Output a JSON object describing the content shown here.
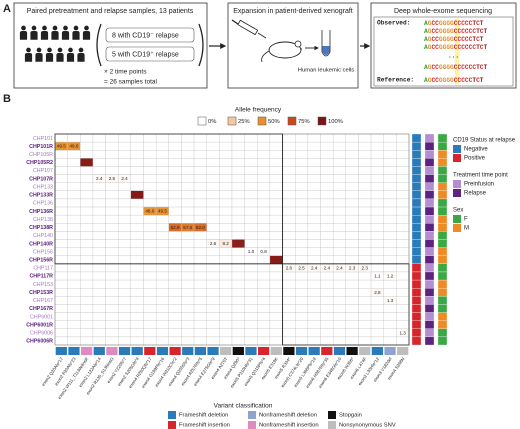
{
  "panel_a": {
    "label": "A",
    "box1": {
      "title": "Paired pretreatment and relapse samples, 13 patients",
      "lines": [
        "8 with CD19⁻ relapse",
        "5 with CD19⁺ relapse",
        "× 2 time points",
        "= 26 samples total"
      ]
    },
    "box2": {
      "title": "Expansion in patient-derived xenograft",
      "caption": "Human leukemic cells"
    },
    "box3": {
      "title": "Deep whole-exome sequencing",
      "observed_label": "Observed:",
      "reference_label": "Reference:",
      "observed": [
        "AGCCGGGGCCCCCTCT",
        "AGCCGGGGCCCCCCTCT",
        "AGCCGGGGCCCCCTCT",
        "AGCCGGGGCCCCCCTCT",
        "AGCCGGGGCCCCCCTCT"
      ],
      "ellipsis": "...",
      "reference": "AGCCGGGGCCCCCTCT"
    }
  },
  "chart_data": {
    "type": "heatmap",
    "panel_label": "B",
    "color_scale": {
      "title": "Allele frequency",
      "ticks": [
        {
          "value": 0,
          "label": "0%"
        },
        {
          "value": 25,
          "label": "25%"
        },
        {
          "value": 50,
          "label": "50%"
        },
        {
          "value": 75,
          "label": "75%"
        },
        {
          "value": 100,
          "label": "100%"
        }
      ],
      "colors": [
        "#ffffff",
        "#f6c6a0",
        "#e8912f",
        "#c9481c",
        "#7a1417"
      ]
    },
    "annotations": {
      "cd19_status": {
        "title": "CD19 Status at relapse",
        "levels": [
          {
            "name": "Negative",
            "color": "#2b7bba"
          },
          {
            "name": "Positive",
            "color": "#d7262b"
          }
        ]
      },
      "time_point": {
        "title": "Treatment time point",
        "levels": [
          {
            "name": "Preinfusion",
            "color": "#b48ed0"
          },
          {
            "name": "Relapse",
            "color": "#5e2280"
          }
        ]
      },
      "sex": {
        "title": "Sex",
        "levels": [
          {
            "name": "F",
            "color": "#3aa845"
          },
          {
            "name": "M",
            "color": "#f08a24"
          }
        ]
      }
    },
    "rows": [
      {
        "name": "CHP101",
        "cd19_status": "Negative",
        "time_point": "Preinfusion",
        "sex": "F"
      },
      {
        "name": "CHP101R",
        "cd19_status": "Negative",
        "time_point": "Relapse",
        "sex": "F"
      },
      {
        "name": "CHP105R",
        "cd19_status": "Negative",
        "time_point": "Preinfusion",
        "sex": "M"
      },
      {
        "name": "CHP105R2",
        "cd19_status": "Negative",
        "time_point": "Relapse",
        "sex": "M"
      },
      {
        "name": "CHP107",
        "cd19_status": "Negative",
        "time_point": "Preinfusion",
        "sex": "F"
      },
      {
        "name": "CHP107R",
        "cd19_status": "Negative",
        "time_point": "Relapse",
        "sex": "F"
      },
      {
        "name": "CHP133",
        "cd19_status": "Negative",
        "time_point": "Preinfusion",
        "sex": "M"
      },
      {
        "name": "CHP133R",
        "cd19_status": "Negative",
        "time_point": "Relapse",
        "sex": "M"
      },
      {
        "name": "CHP136",
        "cd19_status": "Negative",
        "time_point": "Preinfusion",
        "sex": "F"
      },
      {
        "name": "CHP136R",
        "cd19_status": "Negative",
        "time_point": "Relapse",
        "sex": "F"
      },
      {
        "name": "CHP138",
        "cd19_status": "Negative",
        "time_point": "Preinfusion",
        "sex": "M"
      },
      {
        "name": "CHP138R",
        "cd19_status": "Negative",
        "time_point": "Relapse",
        "sex": "M"
      },
      {
        "name": "CHP140",
        "cd19_status": "Negative",
        "time_point": "Preinfusion",
        "sex": "F"
      },
      {
        "name": "CHP140R",
        "cd19_status": "Negative",
        "time_point": "Relapse",
        "sex": "F"
      },
      {
        "name": "CHP156",
        "cd19_status": "Negative",
        "time_point": "Preinfusion",
        "sex": "M"
      },
      {
        "name": "CHP156R",
        "cd19_status": "Negative",
        "time_point": "Relapse",
        "sex": "M"
      },
      {
        "name": "CHP117",
        "cd19_status": "Positive",
        "time_point": "Preinfusion",
        "sex": "F"
      },
      {
        "name": "CHP117R",
        "cd19_status": "Positive",
        "time_point": "Relapse",
        "sex": "F"
      },
      {
        "name": "CHP153",
        "cd19_status": "Positive",
        "time_point": "Preinfusion",
        "sex": "M"
      },
      {
        "name": "CHP153R",
        "cd19_status": "Positive",
        "time_point": "Relapse",
        "sex": "M"
      },
      {
        "name": "CHP167",
        "cd19_status": "Positive",
        "time_point": "Preinfusion",
        "sex": "F"
      },
      {
        "name": "CHP167R",
        "cd19_status": "Positive",
        "time_point": "Relapse",
        "sex": "F"
      },
      {
        "name": "CHP6001",
        "cd19_status": "Positive",
        "time_point": "Preinfusion",
        "sex": "M"
      },
      {
        "name": "CHP6001R",
        "cd19_status": "Positive",
        "time_point": "Relapse",
        "sex": "M"
      },
      {
        "name": "CHP6006",
        "cd19_status": "Positive",
        "time_point": "Preinfusion",
        "sex": "F"
      },
      {
        "name": "CHP6006R",
        "cd19_status": "Positive",
        "time_point": "Relapse",
        "sex": "F"
      }
    ],
    "variant_title": "Variant classification",
    "variant_classes": [
      {
        "name": "Frameshift deletion",
        "color": "#2b7bba"
      },
      {
        "name": "Frameshift insertion",
        "color": "#d7262b"
      },
      {
        "name": "Nonframeshift deletion",
        "color": "#8fa3d1"
      },
      {
        "name": "Nonframeshift insertion",
        "color": "#e08ac2"
      },
      {
        "name": "Stopgain",
        "color": "#111111"
      },
      {
        "name": "Nonsynonymous SNV",
        "color": "#bdbdbd"
      }
    ],
    "columns": [
      {
        "name": "exon2 Q20Afs*17",
        "class": "Frameshift deletion"
      },
      {
        "name": "exon2 P20Afs*23",
        "class": "Frameshift deletion"
      },
      {
        "name": "exon2 W111_T113delinsR",
        "class": "Nonframeshift insertion"
      },
      {
        "name": "exon2 L122Afs*14",
        "class": "Frameshift deletion"
      },
      {
        "name": "exon2 R135_S136insG",
        "class": "Nonframeshift insertion"
      },
      {
        "name": "exon2 Y220fs*7",
        "class": "Frameshift deletion"
      },
      {
        "name": "exon2 S205Gfs*4",
        "class": "Frameshift deletion"
      },
      {
        "name": "exon4 R250Qfs*17",
        "class": "Frameshift insertion"
      },
      {
        "name": "exon4 G199Pfs*16",
        "class": "Frameshift deletion"
      },
      {
        "name": "exon4 W210Cfs*2",
        "class": "Frameshift insertion"
      },
      {
        "name": "exon4 Q255Sfs*3",
        "class": "Frameshift deletion"
      },
      {
        "name": "exon4 A257Rfs*5",
        "class": "Frameshift deletion"
      },
      {
        "name": "exon4 E275Gfs*9",
        "class": "Frameshift deletion"
      },
      {
        "name": "exon4 A270T",
        "class": "Nonsynonymous SNV"
      },
      {
        "name": "exon4 Q290*",
        "class": "Stopgain"
      },
      {
        "name": "exon5 P310Hfs*31",
        "class": "Frameshift deletion"
      },
      {
        "name": "exon5 Q315Pfs*4",
        "class": "Frameshift insertion"
      },
      {
        "name": "exon5 E319K",
        "class": "Nonsynonymous SNV"
      },
      {
        "name": "exon5 R334*",
        "class": "Stopgain"
      },
      {
        "name": "exon5 C374Lfs*20",
        "class": "Frameshift deletion"
      },
      {
        "name": "exon5 L368Pfs*19",
        "class": "Frameshift deletion"
      },
      {
        "name": "exon6 H387Rfs*35",
        "class": "Frameshift insertion"
      },
      {
        "name": "exon6 E348Gfs*10",
        "class": "Frameshift deletion"
      },
      {
        "name": "exon6 W356*",
        "class": "Stopgain"
      },
      {
        "name": "exon6 L474F",
        "class": "Nonsynonymous SNV"
      },
      {
        "name": "exon2 L30Hfs*12",
        "class": "Frameshift deletion"
      },
      {
        "name": "exon3 V182del",
        "class": "Nonframeshift deletion"
      },
      {
        "name": "exon4 S268N",
        "class": "Nonsynonymous SNV"
      }
    ],
    "cells": [
      {
        "row": 1,
        "col": 0,
        "value": 49.5
      },
      {
        "row": 1,
        "col": 1,
        "value": 49.6
      },
      {
        "row": 3,
        "col": 2,
        "value": 96
      },
      {
        "row": 5,
        "col": 3,
        "value": 2.4
      },
      {
        "row": 5,
        "col": 4,
        "value": 2.5
      },
      {
        "row": 5,
        "col": 5,
        "value": 2.4
      },
      {
        "row": 7,
        "col": 6,
        "value": 97
      },
      {
        "row": 9,
        "col": 7,
        "value": 48
      },
      {
        "row": 9,
        "col": 8,
        "value": 49.5
      },
      {
        "row": 11,
        "col": 9,
        "value": 62.9
      },
      {
        "row": 11,
        "col": 10,
        "value": 57
      },
      {
        "row": 11,
        "col": 11,
        "value": 62
      },
      {
        "row": 13,
        "col": 12,
        "value": 2.6
      },
      {
        "row": 13,
        "col": 13,
        "value": 8.2
      },
      {
        "row": 13,
        "col": 14,
        "value": 95
      },
      {
        "row": 14,
        "col": 15,
        "value": 1
      },
      {
        "row": 14,
        "col": 16,
        "value": 0.8
      },
      {
        "row": 15,
        "col": 17,
        "value": 96
      },
      {
        "row": 16,
        "col": 18,
        "value": 2.6
      },
      {
        "row": 16,
        "col": 19,
        "value": 2.5
      },
      {
        "row": 16,
        "col": 20,
        "value": 2.4
      },
      {
        "row": 16,
        "col": 21,
        "value": 2.4
      },
      {
        "row": 16,
        "col": 22,
        "value": 2.4
      },
      {
        "row": 16,
        "col": 23,
        "value": 2.3
      },
      {
        "row": 16,
        "col": 24,
        "value": 2.3
      },
      {
        "row": 17,
        "col": 25,
        "value": 1.1
      },
      {
        "row": 17,
        "col": 26,
        "value": 1.2
      },
      {
        "row": 19,
        "col": 25,
        "value": 2.8
      },
      {
        "row": 20,
        "col": 26,
        "value": 1.3
      },
      {
        "row": 24,
        "col": 27,
        "value": 1.3
      }
    ],
    "value_labels": [
      "49.5",
      "49.6",
      null,
      "2.4",
      "2.5",
      "2.4",
      null,
      "48.0",
      "49.5",
      "62.9",
      "57.0",
      "62.0",
      "2.6",
      "8.2",
      null,
      "1.0",
      "0.8",
      null,
      "2.6",
      "2.5",
      "2.4",
      "2.4",
      "2.4",
      "2.3",
      "2.3",
      "1.1",
      "1.2",
      "2.8",
      "1.3",
      "1.3"
    ]
  }
}
